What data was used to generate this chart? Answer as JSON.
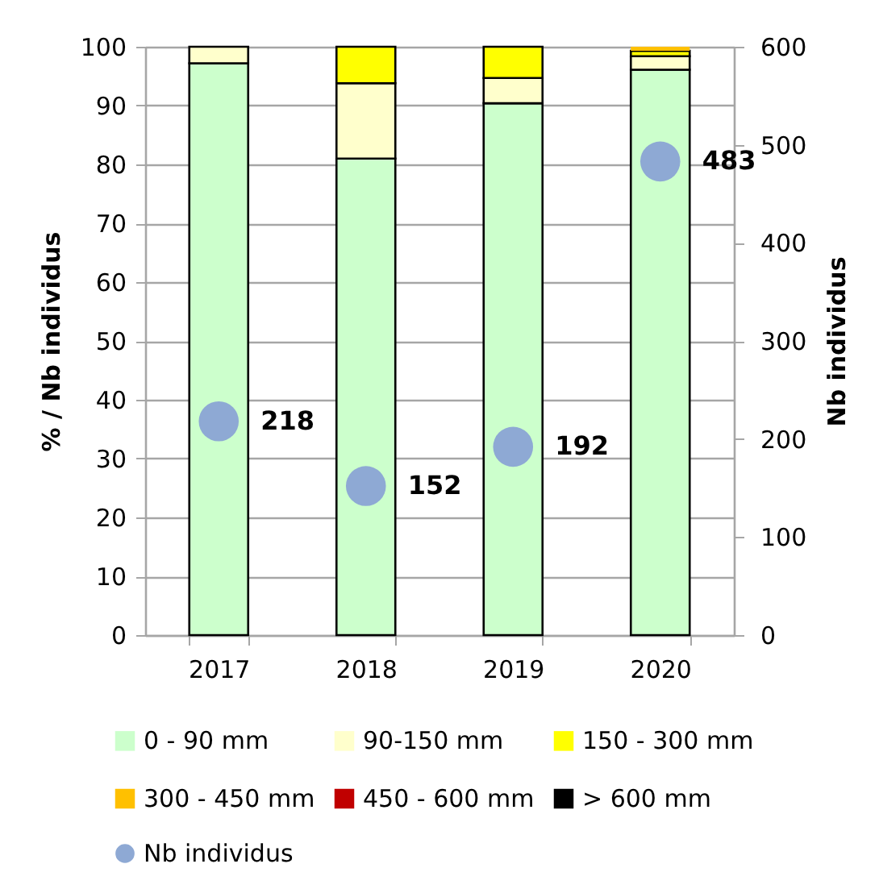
{
  "chart_data": {
    "type": "bar",
    "stacked": true,
    "categories": [
      "2017",
      "2018",
      "2019",
      "2020"
    ],
    "ylabel": "% / Nb individus",
    "y2label": "Nb individus",
    "ylim": [
      0,
      100
    ],
    "yticks": [
      0,
      10,
      20,
      30,
      40,
      50,
      60,
      70,
      80,
      90,
      100
    ],
    "y2lim": [
      0,
      600
    ],
    "y2ticks": [
      0,
      100,
      200,
      300,
      400,
      500,
      600
    ],
    "grid": "y",
    "legend": "bottom",
    "marker": "circle",
    "series": [
      {
        "name": "0 - 90 mm",
        "color": "#ccffcc",
        "values": [
          97.2,
          81.0,
          90.4,
          96.1
        ]
      },
      {
        "name": "90-150 mm",
        "color": "#ffffcc",
        "values": [
          2.8,
          12.8,
          4.3,
          2.3
        ]
      },
      {
        "name": "150 - 300 mm",
        "color": "#ffff00",
        "values": [
          null,
          6.2,
          5.3,
          0.9
        ]
      },
      {
        "name": "300 - 450 mm",
        "color": "#ffc000",
        "values": [
          null,
          null,
          null,
          0.7
        ]
      },
      {
        "name": "450 - 600 mm",
        "color": "#c00000",
        "values": [
          null,
          null,
          null,
          null
        ]
      },
      {
        "name": "> 600 mm",
        "color": "#000000",
        "values": [
          null,
          null,
          null,
          null
        ]
      },
      {
        "name": "Nb individus",
        "type": "scatter",
        "axis": "y2",
        "color": "#8ea9d4",
        "values": [
          218,
          152,
          192,
          483
        ],
        "value_labels": [
          "218",
          "152",
          "192",
          "483"
        ]
      }
    ]
  }
}
